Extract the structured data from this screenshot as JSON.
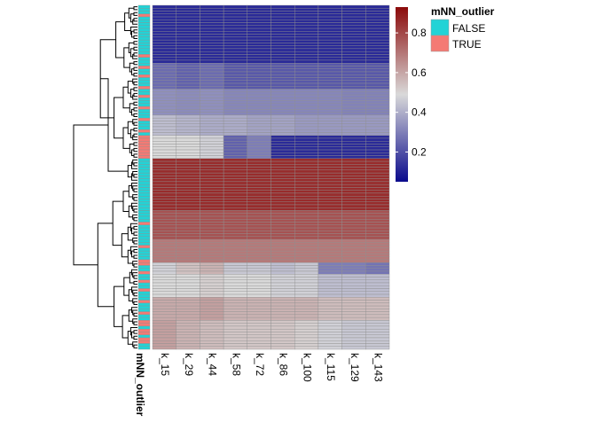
{
  "chart_data": {
    "type": "heatmap",
    "columns": [
      "k_15",
      "k_29",
      "k_44",
      "k_58",
      "k_72",
      "k_86",
      "k_100",
      "k_115",
      "k_129",
      "k_143"
    ],
    "annotation": {
      "name": "mNN_outlier",
      "title": "mNN_outlier",
      "levels": [
        "FALSE",
        "TRUE"
      ],
      "colors": {
        "FALSE": "#22D3D6",
        "TRUE": "#F47A74"
      }
    },
    "color_scale": {
      "range": [
        0.05,
        0.93
      ],
      "low": "#0A0A8C",
      "mid": "#D9D9D9",
      "high": "#8B0A0A",
      "midpoint": 0.5,
      "ticks": [
        0.2,
        0.4,
        0.6,
        0.8
      ],
      "tick_labels": [
        "0.2",
        "0.4",
        "0.6",
        "0.8"
      ]
    },
    "row_blocks": [
      {
        "rows": 20,
        "values": [
          0.12,
          0.12,
          0.12,
          0.12,
          0.12,
          0.12,
          0.12,
          0.12,
          0.12,
          0.12
        ],
        "outlier_pattern": [
          0,
          0,
          0,
          1,
          0,
          0,
          0,
          0,
          0,
          0,
          0,
          0,
          0,
          0,
          0,
          0,
          0,
          1,
          0,
          0
        ]
      },
      {
        "rows": 9,
        "values": [
          0.26,
          0.24,
          0.26,
          0.22,
          0.22,
          0.22,
          0.22,
          0.22,
          0.22,
          0.22
        ],
        "outlier_pattern": [
          0,
          1,
          0,
          0,
          1,
          0,
          0,
          0,
          1
        ]
      },
      {
        "rows": 9,
        "values": [
          0.34,
          0.33,
          0.34,
          0.32,
          0.32,
          0.32,
          0.32,
          0.32,
          0.31,
          0.31
        ],
        "outlier_pattern": [
          0,
          0,
          1,
          0,
          0,
          0,
          1,
          0,
          0
        ]
      },
      {
        "rows": 7,
        "values": [
          0.44,
          0.42,
          0.4,
          0.4,
          0.38,
          0.38,
          0.36,
          0.36,
          0.36,
          0.36
        ],
        "outlier_pattern": [
          0,
          1,
          0,
          0,
          0,
          1,
          0
        ]
      },
      {
        "rows": 8,
        "values": [
          0.5,
          0.5,
          0.48,
          0.24,
          0.3,
          0.12,
          0.12,
          0.12,
          0.12,
          0.12
        ],
        "outlier_pattern": [
          1,
          1,
          1,
          1,
          1,
          1,
          1,
          1
        ]
      },
      {
        "rows": 18,
        "values": [
          0.86,
          0.86,
          0.86,
          0.86,
          0.86,
          0.86,
          0.86,
          0.86,
          0.86,
          0.86
        ],
        "outlier_pattern": [
          0,
          0,
          0,
          0,
          0,
          0,
          0,
          0,
          0,
          0,
          0,
          0,
          0,
          0,
          0,
          0,
          0,
          0
        ]
      },
      {
        "rows": 10,
        "values": [
          0.78,
          0.78,
          0.78,
          0.78,
          0.78,
          0.78,
          0.78,
          0.78,
          0.78,
          0.78
        ],
        "outlier_pattern": [
          0,
          0,
          0,
          0,
          1,
          0,
          0,
          0,
          0,
          0
        ]
      },
      {
        "rows": 8,
        "values": [
          0.7,
          0.7,
          0.7,
          0.7,
          0.7,
          0.7,
          0.7,
          0.7,
          0.7,
          0.7
        ],
        "outlier_pattern": [
          0,
          0,
          1,
          0,
          0,
          0,
          0,
          1
        ]
      },
      {
        "rows": 4,
        "values": [
          0.48,
          0.55,
          0.58,
          0.46,
          0.46,
          0.44,
          0.46,
          0.3,
          0.3,
          0.28
        ],
        "outlier_pattern": [
          1,
          0,
          0,
          1
        ]
      },
      {
        "rows": 8,
        "values": [
          0.5,
          0.5,
          0.52,
          0.5,
          0.5,
          0.48,
          0.48,
          0.44,
          0.44,
          0.44
        ],
        "outlier_pattern": [
          0,
          0,
          1,
          0,
          0,
          1,
          0,
          0
        ]
      },
      {
        "rows": 8,
        "values": [
          0.6,
          0.6,
          0.62,
          0.58,
          0.58,
          0.58,
          0.58,
          0.56,
          0.56,
          0.56
        ],
        "outlier_pattern": [
          0,
          1,
          0,
          0,
          0,
          1,
          0,
          0
        ]
      },
      {
        "rows": 10,
        "values": [
          0.62,
          0.58,
          0.56,
          0.54,
          0.54,
          0.54,
          0.52,
          0.48,
          0.46,
          0.46
        ],
        "outlier_pattern": [
          1,
          1,
          0,
          1,
          1,
          0,
          1,
          1,
          0,
          0
        ]
      }
    ]
  }
}
